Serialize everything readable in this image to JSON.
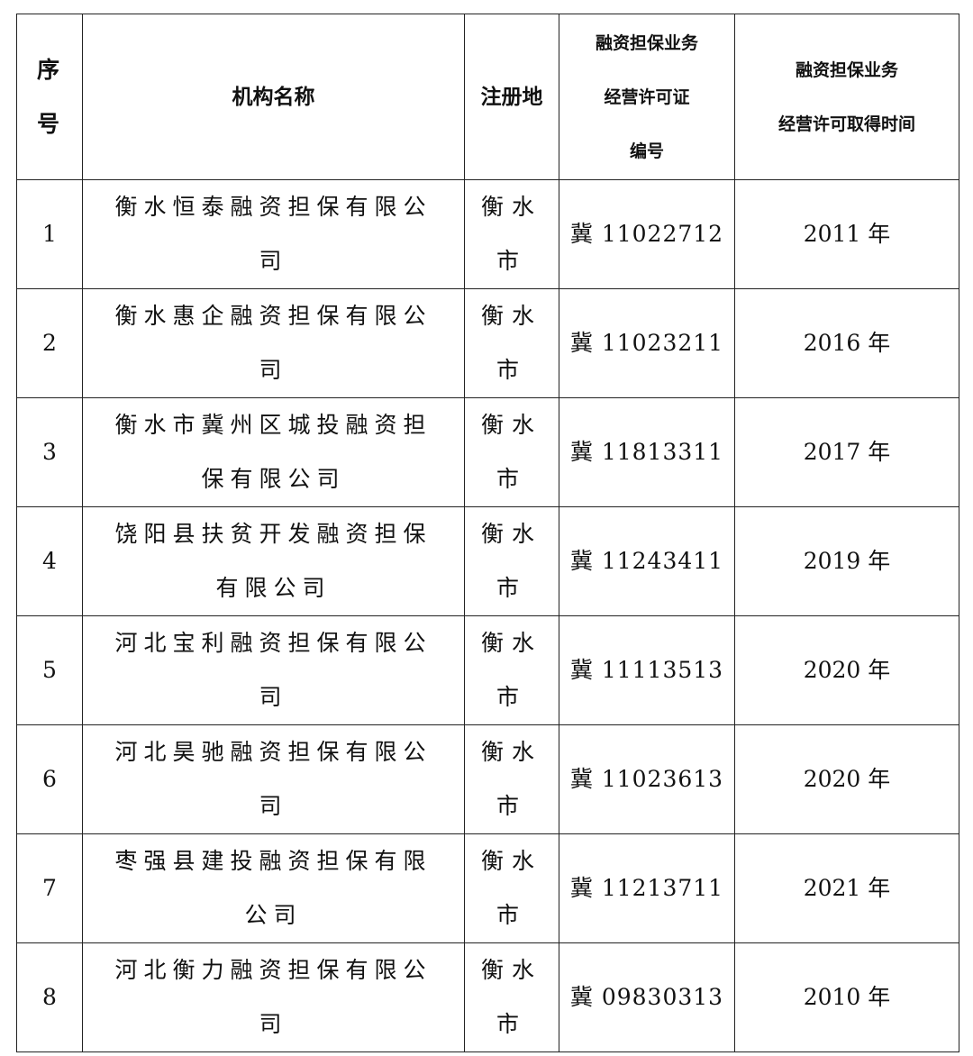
{
  "headers": {
    "seq": "序号",
    "name": "机构名称",
    "location": "注册地",
    "license_no": [
      "融资担保业务",
      "经营许可证",
      "编号"
    ],
    "license_time": [
      "融资担保业务",
      "经营许可取得时间"
    ]
  },
  "rows": [
    {
      "seq": "1",
      "name": "衡水恒泰融资担保有限公司",
      "location": "衡水市",
      "license_no": "冀 11022712",
      "year": "2011 年"
    },
    {
      "seq": "2",
      "name": "衡水惠企融资担保有限公司",
      "location": "衡水市",
      "license_no": "冀 11023211",
      "year": "2016 年"
    },
    {
      "seq": "3",
      "name": "衡水市冀州区城投融资担保有限公司",
      "location": "衡水市",
      "license_no": "冀 11813311",
      "year": "2017 年"
    },
    {
      "seq": "4",
      "name": "饶阳县扶贫开发融资担保有限公司",
      "location": "衡水市",
      "license_no": "冀 11243411",
      "year": "2019 年"
    },
    {
      "seq": "5",
      "name": "河北宝利融资担保有限公司",
      "location": "衡水市",
      "license_no": "冀 11113513",
      "year": "2020 年"
    },
    {
      "seq": "6",
      "name": "河北昊驰融资担保有限公司",
      "location": "衡水市",
      "license_no": "冀 11023613",
      "year": "2020 年"
    },
    {
      "seq": "7",
      "name": "枣强县建投融资担保有限公司",
      "location": "衡水市",
      "license_no": "冀 11213711",
      "year": "2021 年"
    },
    {
      "seq": "8",
      "name": "河北衡力融资担保有限公司",
      "location": "衡水市",
      "license_no": "冀 09830313",
      "year": "2010 年"
    }
  ]
}
